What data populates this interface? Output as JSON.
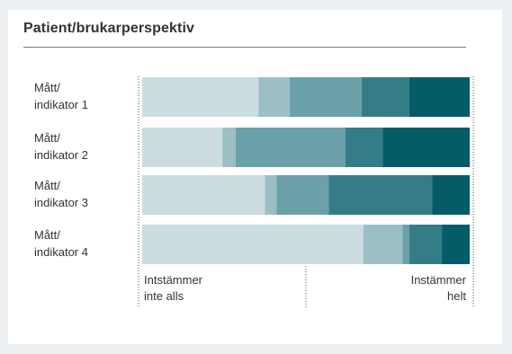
{
  "title": "Patient/brukarperspektiv",
  "chart_data": {
    "type": "bar",
    "stacked": true,
    "orientation": "horizontal",
    "title": "Patient/brukarperspektiv",
    "categories": [
      [
        "Mått/",
        "indikator 1"
      ],
      [
        "Mått/",
        "indikator 2"
      ],
      [
        "Mått/",
        "indikator 3"
      ],
      [
        "Mått/",
        "indikator 4"
      ]
    ],
    "series": [
      {
        "color": "#ccdde2",
        "values": [
          35.5,
          24.5,
          37.5,
          67.5
        ]
      },
      {
        "color": "#9bbfc4",
        "values": [
          9.5,
          4.0,
          3.5,
          12.0
        ]
      },
      {
        "color": "#6ba2aa",
        "values": [
          22.0,
          33.5,
          16.0,
          2.0
        ]
      },
      {
        "color": "#357d86",
        "values": [
          14.5,
          11.5,
          31.5,
          10.0
        ]
      },
      {
        "color": "#065b69",
        "values": [
          18.5,
          26.5,
          11.5,
          8.5
        ]
      }
    ],
    "xlim": [
      0,
      100
    ],
    "scale_labels": {
      "left": [
        "Intstämmer",
        "inte alls"
      ],
      "right": [
        "Instämmer",
        "helt"
      ]
    }
  }
}
